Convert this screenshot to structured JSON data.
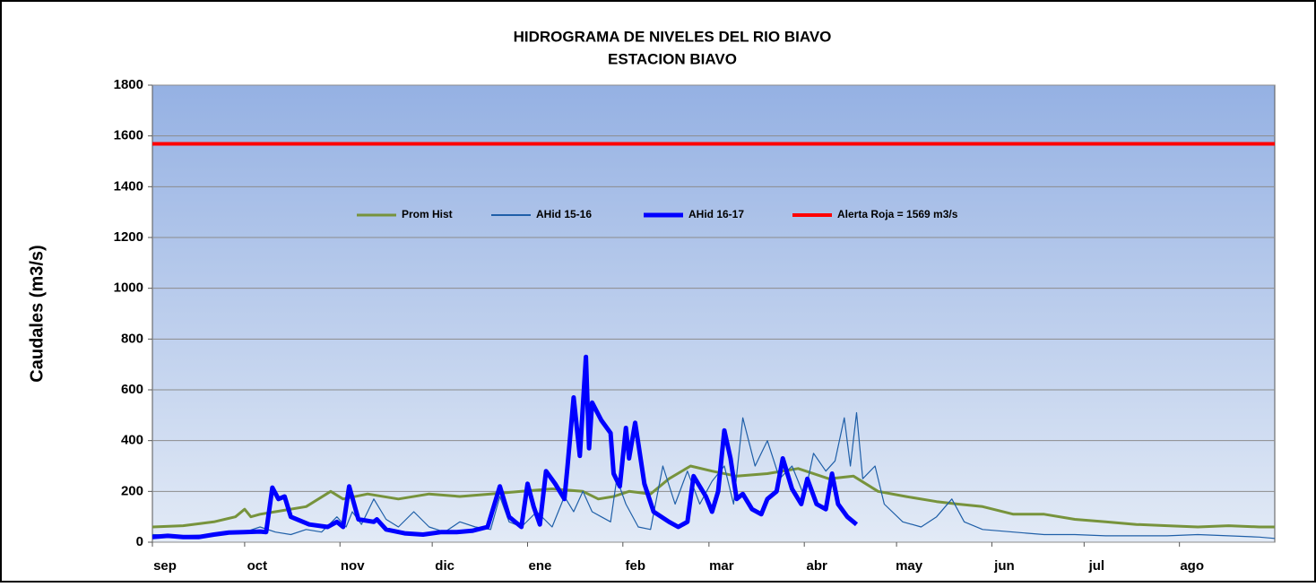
{
  "chart_data": {
    "type": "line",
    "title": "HIDROGRAMA DE NIVELES  DEL RIO  BIAVO",
    "subtitle": "ESTACION BIAVO",
    "ylabel": "Caudales  (m3/s)",
    "xlim": [
      0,
      365
    ],
    "xticks": [
      {
        "value": 0,
        "label": "sep"
      },
      {
        "value": 30,
        "label": "oct"
      },
      {
        "value": 61,
        "label": "nov"
      },
      {
        "value": 91,
        "label": "dic"
      },
      {
        "value": 122,
        "label": "ene"
      },
      {
        "value": 153,
        "label": "feb"
      },
      {
        "value": 181,
        "label": "mar"
      },
      {
        "value": 212,
        "label": "abr"
      },
      {
        "value": 242,
        "label": "may"
      },
      {
        "value": 273,
        "label": "jun"
      },
      {
        "value": 303,
        "label": "jul"
      },
      {
        "value": 334,
        "label": "ago"
      }
    ],
    "ylim": [
      0,
      1800
    ],
    "yticks": [
      0,
      200,
      400,
      600,
      800,
      1000,
      1200,
      1400,
      1600,
      1800
    ],
    "grid": true,
    "legend": "top",
    "series": [
      {
        "name": "Prom Hist",
        "color": "#77933c",
        "width": 3,
        "x": [
          0,
          10,
          20,
          27,
          30,
          32,
          35,
          40,
          50,
          58,
          62,
          70,
          80,
          90,
          100,
          110,
          120,
          130,
          140,
          145,
          150,
          155,
          162,
          168,
          175,
          182,
          190,
          200,
          210,
          220,
          228,
          236,
          245,
          255,
          262,
          270,
          280,
          290,
          300,
          310,
          320,
          330,
          340,
          350,
          360,
          365
        ],
        "values": [
          60,
          65,
          80,
          100,
          130,
          100,
          110,
          120,
          140,
          200,
          170,
          190,
          170,
          190,
          180,
          190,
          200,
          210,
          200,
          170,
          180,
          200,
          190,
          250,
          300,
          280,
          260,
          270,
          290,
          250,
          260,
          200,
          180,
          160,
          150,
          140,
          110,
          110,
          90,
          80,
          70,
          65,
          60,
          65,
          60,
          60
        ]
      },
      {
        "name": "AHid 15-16",
        "color": "#1f5fa8",
        "width": 1.2,
        "x": [
          0,
          10,
          20,
          30,
          35,
          40,
          45,
          50,
          55,
          60,
          63,
          65,
          68,
          72,
          76,
          80,
          85,
          90,
          95,
          100,
          105,
          110,
          113,
          116,
          120,
          125,
          130,
          134,
          137,
          140,
          143,
          146,
          149,
          151,
          154,
          158,
          162,
          166,
          170,
          174,
          178,
          182,
          186,
          189,
          192,
          196,
          200,
          204,
          208,
          212,
          215,
          219,
          222,
          225,
          227,
          229,
          231,
          235,
          238,
          244,
          250,
          255,
          260,
          264,
          270,
          280,
          290,
          300,
          310,
          320,
          330,
          340,
          350,
          360,
          365
        ],
        "values": [
          30,
          25,
          30,
          40,
          60,
          40,
          30,
          50,
          40,
          100,
          60,
          120,
          70,
          170,
          90,
          60,
          120,
          60,
          40,
          80,
          60,
          50,
          180,
          80,
          60,
          120,
          60,
          180,
          120,
          200,
          120,
          100,
          80,
          250,
          150,
          60,
          50,
          300,
          150,
          280,
          150,
          240,
          300,
          150,
          490,
          300,
          400,
          250,
          300,
          180,
          350,
          280,
          320,
          490,
          300,
          510,
          250,
          300,
          150,
          80,
          60,
          100,
          170,
          80,
          50,
          40,
          30,
          30,
          25,
          25,
          25,
          30,
          25,
          20,
          15
        ]
      },
      {
        "name": "AHid 16-17",
        "color": "#0000ff",
        "width": 5,
        "x": [
          0,
          5,
          10,
          15,
          20,
          25,
          30,
          35,
          37,
          39,
          41,
          43,
          45,
          51,
          57,
          60,
          62,
          64,
          67,
          72,
          73,
          76,
          82,
          88,
          94,
          99,
          104,
          109,
          113,
          116,
          120,
          122,
          124,
          126,
          128,
          131,
          134,
          135,
          137,
          139,
          141,
          142,
          143,
          146,
          149,
          150,
          152,
          154,
          155,
          157,
          158,
          160,
          163,
          168,
          171,
          174,
          176,
          180,
          182,
          184,
          186,
          188,
          190,
          192,
          195,
          198,
          200,
          203,
          205,
          208,
          211,
          213,
          216,
          219,
          221,
          223,
          226,
          229
        ],
        "values": [
          20,
          25,
          20,
          20,
          30,
          38,
          40,
          42,
          40,
          215,
          170,
          180,
          100,
          70,
          60,
          80,
          60,
          220,
          90,
          80,
          90,
          50,
          35,
          30,
          40,
          40,
          45,
          60,
          220,
          100,
          60,
          230,
          140,
          70,
          280,
          230,
          170,
          300,
          570,
          340,
          730,
          370,
          550,
          480,
          430,
          270,
          220,
          450,
          330,
          470,
          390,
          230,
          120,
          80,
          60,
          80,
          260,
          180,
          120,
          200,
          440,
          330,
          170,
          190,
          130,
          110,
          170,
          200,
          330,
          210,
          150,
          250,
          150,
          130,
          270,
          150,
          100,
          70
        ]
      }
    ],
    "threshold": {
      "name": "Alerta Roja = 1569 m3/s",
      "value": 1569,
      "color": "#ff0000"
    }
  }
}
